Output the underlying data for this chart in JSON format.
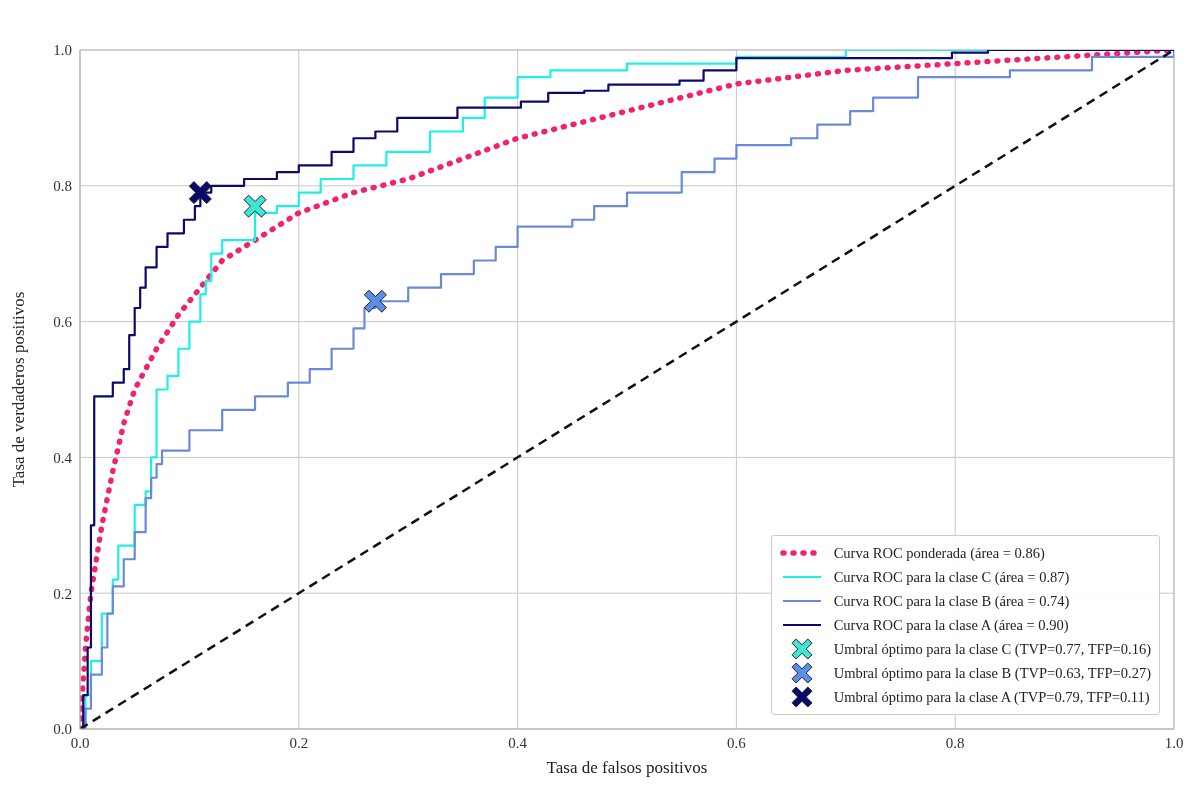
{
  "chart_data": {
    "type": "line",
    "xlabel": "Tasa de falsos positivos",
    "ylabel": "Tasa de verdaderos positivos",
    "xlim": [
      0,
      1
    ],
    "ylim": [
      0,
      1
    ],
    "xticks": [
      {
        "value": 0,
        "label": "0.0"
      },
      0.2,
      0.4,
      0.6,
      0.8,
      {
        "value": 1,
        "label": "1.0"
      }
    ],
    "yticks": [
      {
        "value": 0,
        "label": "0.0"
      },
      0.2,
      0.4,
      0.6,
      0.8,
      {
        "value": 1,
        "label": "1.0"
      }
    ],
    "grid": true,
    "legend": "bottom right",
    "series": [
      {
        "name": "Curva ROC ponderada (área = 0.86)",
        "color": "#f0246e",
        "line_style": "dotted",
        "x": [
          0,
          0.005,
          0.01,
          0.02,
          0.03,
          0.04,
          0.05,
          0.07,
          0.09,
          0.11,
          0.13,
          0.16,
          0.2,
          0.25,
          0.3,
          0.35,
          0.4,
          0.45,
          0.5,
          0.55,
          0.6,
          0.7,
          0.8,
          0.9,
          1
        ],
        "values": [
          0,
          0.12,
          0.2,
          0.3,
          0.38,
          0.45,
          0.5,
          0.56,
          0.61,
          0.65,
          0.69,
          0.72,
          0.76,
          0.79,
          0.81,
          0.84,
          0.87,
          0.89,
          0.91,
          0.93,
          0.95,
          0.97,
          0.98,
          0.99,
          1
        ]
      },
      {
        "type": "step",
        "name": "Curva ROC para la clase C (área = 0.87)",
        "color": "#1ef0e6",
        "line_style": "solid",
        "x": [
          0,
          0.005,
          0.01,
          0.02,
          0.03,
          0.035,
          0.05,
          0.06,
          0.065,
          0.07,
          0.08,
          0.09,
          0.1,
          0.11,
          0.115,
          0.12,
          0.13,
          0.16,
          0.18,
          0.2,
          0.22,
          0.25,
          0.28,
          0.32,
          0.35,
          0.37,
          0.4,
          0.43,
          0.5,
          0.6,
          0.7,
          1
        ],
        "values": [
          0,
          0.05,
          0.1,
          0.17,
          0.22,
          0.27,
          0.33,
          0.35,
          0.4,
          0.5,
          0.52,
          0.56,
          0.6,
          0.64,
          0.66,
          0.7,
          0.72,
          0.76,
          0.77,
          0.79,
          0.81,
          0.83,
          0.85,
          0.88,
          0.9,
          0.93,
          0.96,
          0.97,
          0.98,
          0.99,
          1,
          1
        ]
      },
      {
        "type": "step",
        "name": "Curva ROC para la clase B (área = 0.74)",
        "color": "#6a8ad8",
        "line_style": "solid",
        "x": [
          0,
          0.005,
          0.01,
          0.02,
          0.025,
          0.03,
          0.04,
          0.05,
          0.06,
          0.065,
          0.07,
          0.075,
          0.1,
          0.13,
          0.16,
          0.19,
          0.21,
          0.23,
          0.25,
          0.26,
          0.27,
          0.3,
          0.33,
          0.36,
          0.38,
          0.4,
          0.45,
          0.47,
          0.5,
          0.55,
          0.58,
          0.6,
          0.65,
          0.674,
          0.704,
          0.725,
          0.766,
          0.85,
          0.925,
          1
        ],
        "values": [
          0,
          0.03,
          0.08,
          0.12,
          0.17,
          0.21,
          0.25,
          0.29,
          0.34,
          0.37,
          0.39,
          0.41,
          0.44,
          0.47,
          0.49,
          0.51,
          0.53,
          0.56,
          0.59,
          0.62,
          0.63,
          0.65,
          0.67,
          0.69,
          0.71,
          0.74,
          0.75,
          0.77,
          0.79,
          0.82,
          0.84,
          0.86,
          0.87,
          0.89,
          0.91,
          0.93,
          0.96,
          0.97,
          0.99,
          1
        ]
      },
      {
        "type": "step",
        "name": "Curva ROC para la clase A (área = 0.90)",
        "color": "#0a0a6e",
        "line_style": "solid",
        "x": [
          0,
          0.003,
          0.007,
          0.01,
          0.013,
          0.03,
          0.04,
          0.045,
          0.05,
          0.055,
          0.06,
          0.07,
          0.08,
          0.095,
          0.105,
          0.11,
          0.12,
          0.15,
          0.18,
          0.2,
          0.23,
          0.25,
          0.27,
          0.29,
          0.345,
          0.403,
          0.428,
          0.461,
          0.483,
          0.548,
          0.57,
          0.6,
          0.797,
          0.83,
          1
        ],
        "values": [
          0,
          0.05,
          0.12,
          0.3,
          0.49,
          0.51,
          0.53,
          0.58,
          0.62,
          0.65,
          0.68,
          0.71,
          0.73,
          0.75,
          0.77,
          0.79,
          0.8,
          0.81,
          0.82,
          0.83,
          0.85,
          0.87,
          0.88,
          0.9,
          0.915,
          0.924,
          0.937,
          0.94,
          0.949,
          0.955,
          0.97,
          0.988,
          0.996,
          1,
          1
        ]
      },
      {
        "color": "#111111",
        "line_style": "dashed",
        "x": [
          0,
          1
        ],
        "values": [
          0,
          1
        ]
      },
      {
        "type": "scatter",
        "name": "Umbral óptimo para la clase C (TVP=0.77, TFP=0.16)",
        "color": "#3ee6d8",
        "marker": "cross",
        "x": [
          0.16
        ],
        "values": [
          0.77
        ]
      },
      {
        "type": "scatter",
        "name": "Umbral óptimo para la clase B (TVP=0.63, TFP=0.27)",
        "color": "#5b8ee6",
        "marker": "cross",
        "x": [
          0.27
        ],
        "values": [
          0.63
        ]
      },
      {
        "type": "scatter",
        "name": "Umbral óptimo para la clase A (TVP=0.79, TFP=0.11)",
        "color": "#0a0a6e",
        "marker": "cross",
        "x": [
          0.11
        ],
        "values": [
          0.79
        ]
      }
    ]
  }
}
